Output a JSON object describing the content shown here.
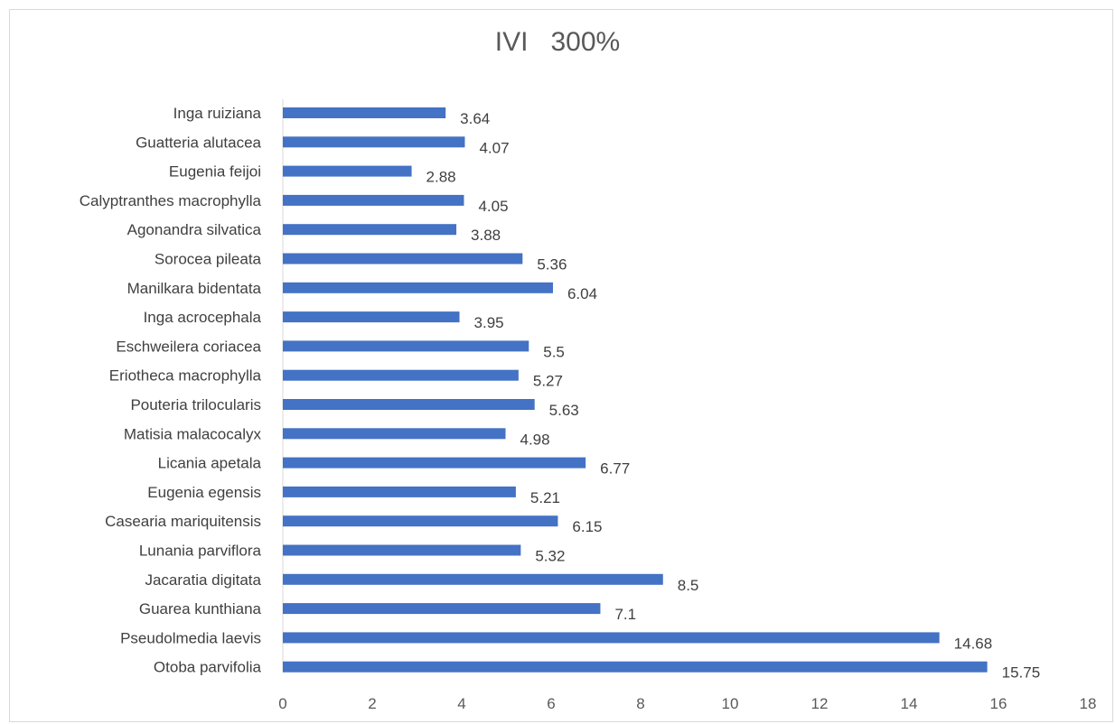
{
  "chart_data": {
    "type": "bar",
    "orientation": "horizontal",
    "title": "IVI   300%",
    "xlabel": "",
    "ylabel": "",
    "xlim": [
      0,
      18
    ],
    "x_ticks": [
      0,
      2,
      4,
      6,
      8,
      10,
      12,
      14,
      16,
      18
    ],
    "grid": false,
    "legend": "none",
    "bar_color": "#4472c4",
    "categories": [
      "Inga ruiziana",
      "Guatteria alutacea",
      "Eugenia feijoi",
      "Calyptranthes macrophylla",
      "Agonandra silvatica",
      "Sorocea pileata",
      "Manilkara bidentata",
      "Inga acrocephala",
      "Eschweilera coriacea",
      "Eriotheca macrophylla",
      "Pouteria trilocularis",
      "Matisia malacocalyx",
      "Licania apetala",
      "Eugenia egensis",
      "Casearia mariquitensis",
      "Lunania parviflora",
      "Jacaratia digitata",
      "Guarea kunthiana",
      "Pseudolmedia laevis",
      "Otoba parvifolia"
    ],
    "values": [
      3.64,
      4.07,
      2.88,
      4.05,
      3.88,
      5.36,
      6.04,
      3.95,
      5.5,
      5.27,
      5.63,
      4.98,
      6.77,
      5.21,
      6.15,
      5.32,
      8.5,
      7.1,
      14.68,
      15.75
    ],
    "value_labels": [
      "3.64",
      "4.07",
      "2.88",
      "4.05",
      "3.88",
      "5.36",
      "6.04",
      "3.95",
      "5.5",
      "5.27",
      "5.63",
      "4.98",
      "6.77",
      "5.21",
      "6.15",
      "5.32",
      "8.5",
      "7.1",
      "14.68",
      "15.75"
    ]
  }
}
